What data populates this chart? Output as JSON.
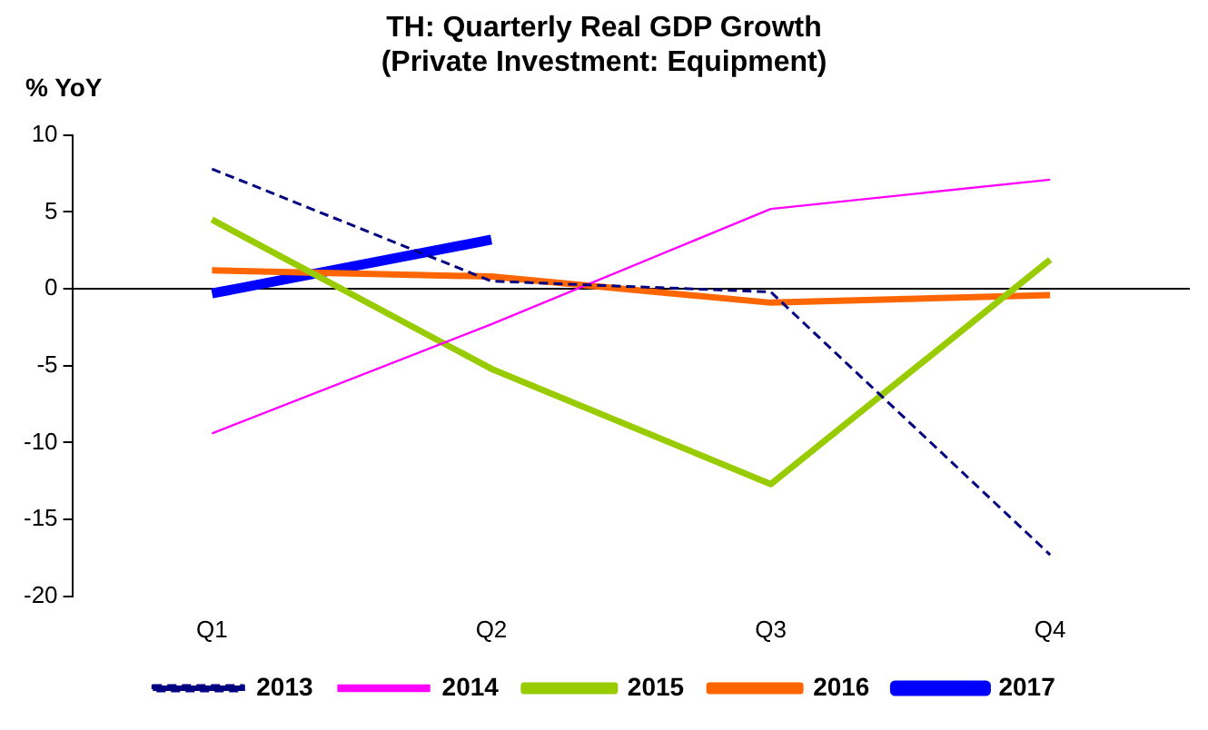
{
  "chart_data": {
    "type": "line",
    "title": "TH: Quarterly Real GDP Growth\n(Private Investment: Equipment)",
    "ylabel": "% YoY",
    "categories": [
      "Q1",
      "Q2",
      "Q3",
      "Q4"
    ],
    "series": [
      {
        "name": "2013",
        "color": "#000080",
        "line_style": "dashed",
        "values": [
          7.8,
          0.5,
          -0.2,
          -17.3
        ]
      },
      {
        "name": "2014",
        "color": "#ff00ff",
        "values": [
          -9.4,
          -2.3,
          5.2,
          7.1
        ]
      },
      {
        "name": "2015",
        "color": "#99cc00",
        "values": [
          4.5,
          -5.2,
          -12.7,
          1.9
        ]
      },
      {
        "name": "2016",
        "color": "#ff6600",
        "values": [
          1.2,
          0.8,
          -0.9,
          -0.4
        ]
      },
      {
        "name": "2017",
        "color": "#0000ff",
        "values": [
          -0.3,
          3.2,
          null,
          null
        ]
      }
    ],
    "ylim": [
      -20,
      10
    ],
    "yticks": [
      -20,
      -15,
      -10,
      -5,
      0,
      5,
      10
    ],
    "legend": "bottom",
    "marker": "none",
    "line_style": "solid"
  }
}
